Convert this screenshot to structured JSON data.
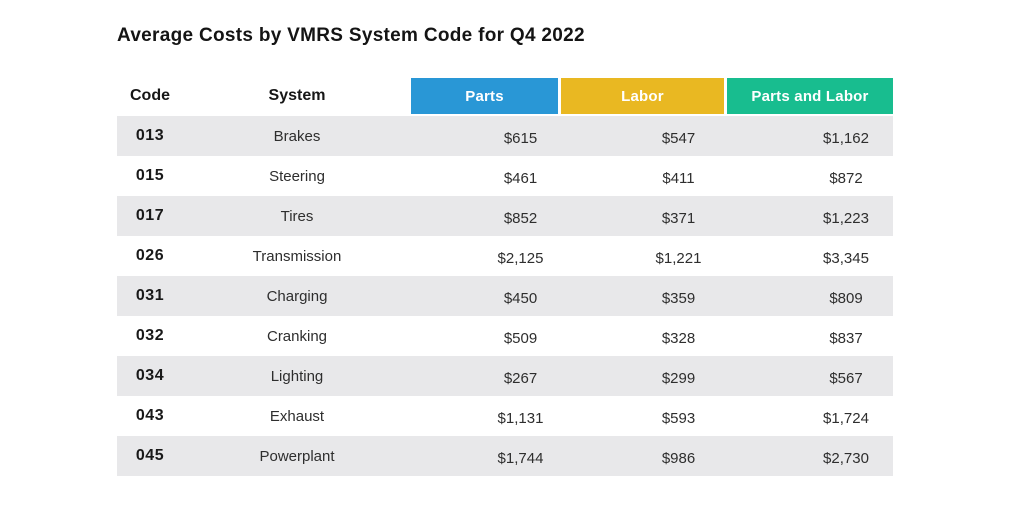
{
  "title": "Average Costs by VMRS System Code for Q4 2022",
  "colors": {
    "parts": "#2997d6",
    "labor": "#e9b822",
    "parts_and_labor": "#18bd8f",
    "stripe": "#e8e8ea"
  },
  "table": {
    "columns": {
      "code": "Code",
      "system": "System",
      "parts": "Parts",
      "labor": "Labor",
      "parts_and_labor": "Parts and Labor"
    },
    "rows": [
      {
        "code": "013",
        "system": "Brakes",
        "parts": "$615",
        "labor": "$547",
        "parts_and_labor": "$1,162"
      },
      {
        "code": "015",
        "system": "Steering",
        "parts": "$461",
        "labor": "$411",
        "parts_and_labor": "$872"
      },
      {
        "code": "017",
        "system": "Tires",
        "parts": "$852",
        "labor": "$371",
        "parts_and_labor": "$1,223"
      },
      {
        "code": "026",
        "system": "Transmission",
        "parts": "$2,125",
        "labor": "$1,221",
        "parts_and_labor": "$3,345"
      },
      {
        "code": "031",
        "system": "Charging",
        "parts": "$450",
        "labor": "$359",
        "parts_and_labor": "$809"
      },
      {
        "code": "032",
        "system": "Cranking",
        "parts": "$509",
        "labor": "$328",
        "parts_and_labor": "$837"
      },
      {
        "code": "034",
        "system": "Lighting",
        "parts": "$267",
        "labor": "$299",
        "parts_and_labor": "$567"
      },
      {
        "code": "043",
        "system": "Exhaust",
        "parts": "$1,131",
        "labor": "$593",
        "parts_and_labor": "$1,724"
      },
      {
        "code": "045",
        "system": "Powerplant",
        "parts": "$1,744",
        "labor": "$986",
        "parts_and_labor": "$2,730"
      }
    ]
  },
  "chart_data": {
    "type": "table",
    "title": "Average Costs by VMRS System Code for Q4 2022",
    "columns": [
      "Code",
      "System",
      "Parts",
      "Labor",
      "Parts and Labor"
    ],
    "codes": [
      "013",
      "015",
      "017",
      "026",
      "031",
      "032",
      "034",
      "043",
      "045"
    ],
    "categories": [
      "Brakes",
      "Steering",
      "Tires",
      "Transmission",
      "Charging",
      "Cranking",
      "Lighting",
      "Exhaust",
      "Powerplant"
    ],
    "series": [
      {
        "name": "Parts",
        "values": [
          615,
          461,
          852,
          2125,
          450,
          509,
          267,
          1131,
          1744
        ]
      },
      {
        "name": "Labor",
        "values": [
          547,
          411,
          371,
          1221,
          359,
          328,
          299,
          593,
          986
        ]
      },
      {
        "name": "Parts and Labor",
        "values": [
          1162,
          872,
          1223,
          3345,
          809,
          837,
          567,
          1724,
          2730
        ]
      }
    ],
    "unit": "USD",
    "legend_position": "header",
    "header_colors": {
      "Parts": "#2997d6",
      "Labor": "#e9b822",
      "Parts and Labor": "#18bd8f"
    }
  }
}
